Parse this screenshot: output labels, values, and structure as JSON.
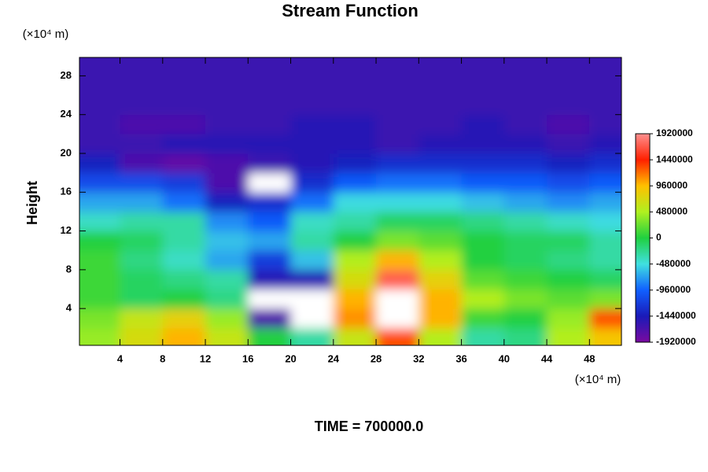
{
  "chart_data": {
    "type": "contour",
    "title": "Stream Function",
    "y_label": "Height",
    "y_unit": "(×10⁴ m)",
    "x_unit": "(×10⁴ m)",
    "footer": "TIME = 700000.0",
    "x": [
      2,
      6,
      10,
      14,
      18,
      22,
      26,
      30,
      34,
      38,
      42,
      46,
      50
    ],
    "y": [
      1,
      3,
      5,
      7,
      9,
      11,
      13,
      15,
      17,
      19,
      21,
      23,
      25,
      27,
      29
    ],
    "z": [
      [
        400000,
        700000,
        1000000,
        600000,
        0,
        -300000,
        600000,
        1300000,
        500000,
        -300000,
        -200000,
        500000,
        900000
      ],
      [
        300000,
        600000,
        800000,
        400000,
        -1700000,
        -2100000,
        1100000,
        2100000,
        1000000,
        100000,
        0,
        400000,
        1300000
      ],
      [
        100000,
        -100000,
        0,
        -200000,
        -2000000,
        -2100000,
        1000000,
        2100000,
        1000000,
        500000,
        300000,
        200000,
        300000
      ],
      [
        100000,
        -100000,
        -200000,
        -300000,
        -1500000,
        -1500000,
        700000,
        1700000,
        800000,
        200000,
        100000,
        0,
        -100000
      ],
      [
        100000,
        -200000,
        -400000,
        -700000,
        -1200000,
        -600000,
        500000,
        1000000,
        500000,
        0,
        -100000,
        -200000,
        -300000
      ],
      [
        0,
        -100000,
        -300000,
        -600000,
        -700000,
        -300000,
        0,
        300000,
        200000,
        0,
        -100000,
        -100000,
        -300000
      ],
      [
        -400000,
        -300000,
        -300000,
        -800000,
        -1000000,
        -400000,
        -300000,
        -100000,
        -100000,
        -200000,
        -300000,
        -400000,
        -500000
      ],
      [
        -700000,
        -700000,
        -900000,
        -1400000,
        -1300000,
        -900000,
        -500000,
        -500000,
        -500000,
        -600000,
        -700000,
        -800000,
        -700000
      ],
      [
        -1100000,
        -1100000,
        -1200000,
        -1700000,
        -2000000,
        -1300000,
        -1000000,
        -900000,
        -900000,
        -1000000,
        -1000000,
        -1100000,
        -1000000
      ],
      [
        -1400000,
        -1700000,
        -1800000,
        -1700000,
        -1600000,
        -1500000,
        -1400000,
        -1300000,
        -1300000,
        -1300000,
        -1300000,
        -1400000,
        -1300000
      ],
      [
        -1600000,
        -1600000,
        -1500000,
        -1500000,
        -1500000,
        -1500000,
        -1500000,
        -1600000,
        -1500000,
        -1500000,
        -1500000,
        -1600000,
        -1500000
      ],
      [
        -1600000,
        -1700000,
        -1700000,
        -1600000,
        -1600000,
        -1500000,
        -1500000,
        -1600000,
        -1600000,
        -1500000,
        -1600000,
        -1700000,
        -1600000
      ],
      [
        -1600000,
        -1600000,
        -1600000,
        -1600000,
        -1600000,
        -1600000,
        -1600000,
        -1600000,
        -1600000,
        -1600000,
        -1600000,
        -1600000,
        -1600000
      ],
      [
        -1600000,
        -1600000,
        -1600000,
        -1600000,
        -1600000,
        -1600000,
        -1600000,
        -1600000,
        -1600000,
        -1600000,
        -1600000,
        -1600000,
        -1600000
      ],
      [
        -1600000,
        -1600000,
        -1600000,
        -1600000,
        -1600000,
        -1600000,
        -1600000,
        -1600000,
        -1600000,
        -1600000,
        -1600000,
        -1600000,
        -1600000
      ]
    ],
    "xlim": [
      0.2,
      51
    ],
    "ylim": [
      0.2,
      29.9
    ],
    "xticks": [
      4,
      8,
      12,
      16,
      20,
      24,
      28,
      32,
      36,
      40,
      44,
      48
    ],
    "yticks": [
      4,
      8,
      12,
      16,
      20,
      24,
      28
    ],
    "clim": [
      -1920000,
      1920000
    ],
    "cticks": [
      -1920000,
      -1440000,
      -960000,
      -480000,
      0,
      480000,
      960000,
      1440000,
      1920000
    ],
    "colorscale": [
      "#7a0aa0",
      "#1a1ab8",
      "#1060ff",
      "#40e0e0",
      "#20d040",
      "#b0f020",
      "#ffc000",
      "#ff2000",
      "#ff9090"
    ],
    "over_color": "#ffffff",
    "under_color": "#ffffff"
  }
}
